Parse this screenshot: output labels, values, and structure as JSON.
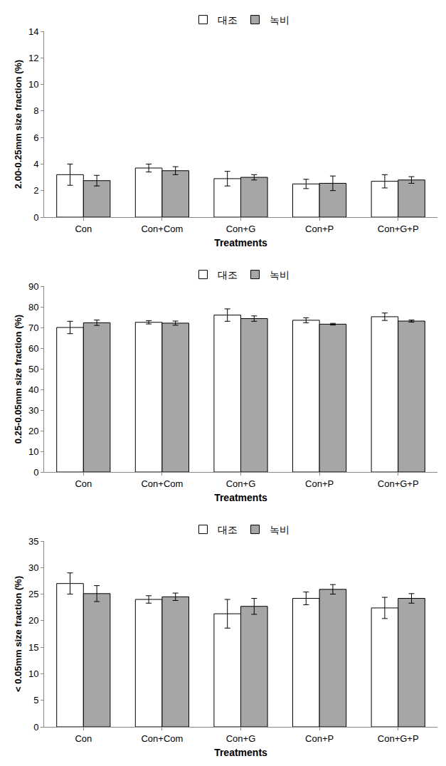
{
  "chart_data": [
    {
      "type": "bar",
      "categories": [
        "Con",
        "Con+Com",
        "Con+G",
        "Con+P",
        "Con+G+P"
      ],
      "series": [
        {
          "name": "대조",
          "color": "#ffffff",
          "values": [
            3.2,
            3.7,
            2.9,
            2.5,
            2.7
          ],
          "errors": [
            0.8,
            0.3,
            0.55,
            0.35,
            0.5
          ]
        },
        {
          "name": "녹비",
          "color": "#a6a6a6",
          "values": [
            2.75,
            3.5,
            3.0,
            2.55,
            2.8
          ],
          "errors": [
            0.4,
            0.3,
            0.2,
            0.55,
            0.25
          ]
        }
      ],
      "xlabel": "Treatments",
      "ylabel": "2.00-0.25mm size fraction (%)",
      "ylim": [
        0,
        14
      ],
      "yticks": [
        0,
        2,
        4,
        6,
        8,
        10,
        12,
        14
      ],
      "grid": false,
      "legend": "top"
    },
    {
      "type": "bar",
      "categories": [
        "Con",
        "Con+Com",
        "Con+G",
        "Con+P",
        "Con+G+P"
      ],
      "series": [
        {
          "name": "대조",
          "color": "#ffffff",
          "values": [
            70,
            72.5,
            76,
            73.5,
            75.2
          ],
          "errors": [
            3,
            0.8,
            3,
            1.2,
            1.8
          ]
        },
        {
          "name": "녹비",
          "color": "#a6a6a6",
          "values": [
            72.3,
            72.1,
            74.3,
            71.6,
            73.1
          ],
          "errors": [
            1.3,
            1,
            1.3,
            0.4,
            0.5
          ]
        }
      ],
      "xlabel": "Treatments",
      "ylabel": "0.25-0.05mm size fraction (%)",
      "ylim": [
        0,
        90
      ],
      "yticks": [
        0,
        10,
        20,
        30,
        40,
        50,
        60,
        70,
        80,
        90
      ],
      "grid": false,
      "legend": "top"
    },
    {
      "type": "bar",
      "categories": [
        "Con",
        "Con+Com",
        "Con+G",
        "Con+P",
        "Con+G+P"
      ],
      "series": [
        {
          "name": "대조",
          "color": "#ffffff",
          "values": [
            27,
            24,
            21.3,
            24.2,
            22.4
          ],
          "errors": [
            2,
            0.7,
            2.7,
            1.2,
            2
          ]
        },
        {
          "name": "녹비",
          "color": "#a6a6a6",
          "values": [
            25.1,
            24.5,
            22.7,
            25.9,
            24.2
          ],
          "errors": [
            1.5,
            0.7,
            1.5,
            0.9,
            0.9
          ]
        }
      ],
      "xlabel": "Treatments",
      "ylabel": "< 0.05mm size fraction (%)",
      "ylim": [
        0,
        35
      ],
      "yticks": [
        0,
        5,
        10,
        15,
        20,
        25,
        30,
        35
      ],
      "grid": false,
      "legend": "top"
    }
  ]
}
